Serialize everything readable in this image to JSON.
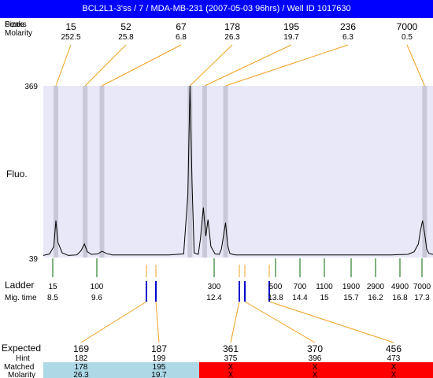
{
  "title": "BCL2L1-3'ss / 7 / MDA-MB-231 (2007-05-03 96hrs) / Well ID 1017630",
  "top_rows": {
    "row1_label": "Peaks",
    "row1_label_overlay": "Sizes",
    "row2_label": "Molarity",
    "peaks": [
      {
        "size": "15",
        "molarity": "252.5"
      },
      {
        "size": "52",
        "molarity": "25.8"
      },
      {
        "size": "67",
        "molarity": "6.8"
      },
      {
        "size": "178",
        "molarity": "26.3"
      },
      {
        "size": "195",
        "molarity": "19.7"
      },
      {
        "size": "236",
        "molarity": "6.3"
      },
      {
        "size": "7000",
        "molarity": "0.5"
      }
    ]
  },
  "axis": {
    "y_max_label": "369",
    "y_min_label": "39",
    "y_title": "Fluo."
  },
  "ladder": {
    "label": "Ladder",
    "mig_label": "Mig. time",
    "items": [
      {
        "size": "15",
        "time": "8.5"
      },
      {
        "size": "100",
        "time": "9.6"
      },
      {
        "size": "300",
        "time": "12.4"
      },
      {
        "size": "500",
        "time": "13.8"
      },
      {
        "size": "700",
        "time": "14.4"
      },
      {
        "size": "1100",
        "time": "15"
      },
      {
        "size": "1900",
        "time": "15.7"
      },
      {
        "size": "2900",
        "time": "16.2"
      },
      {
        "size": "4900",
        "time": "16.8"
      },
      {
        "size": "7000",
        "time": "17.3"
      }
    ]
  },
  "expected": {
    "label": "Expected",
    "hint_label": "Hint",
    "matched_label": "Matched",
    "molarity_label": "Molarity",
    "items": [
      {
        "expected": "169",
        "hint": "182",
        "matched": "178",
        "molarity": "26.3",
        "found": true
      },
      {
        "expected": "187",
        "hint": "199",
        "matched": "195",
        "molarity": "19.7",
        "found": true
      },
      {
        "expected": "361",
        "hint": "375",
        "matched": "X",
        "molarity": "X",
        "found": false
      },
      {
        "expected": "370",
        "hint": "396",
        "matched": "X",
        "molarity": "X",
        "found": false
      },
      {
        "expected": "456",
        "hint": "473",
        "matched": "X",
        "molarity": "X",
        "found": false
      }
    ]
  },
  "colors": {
    "title_bg": "#0000ff",
    "plot_bg": "#e8e8f8",
    "band": "#c8c8d8",
    "connector": "#f0a020",
    "ladder_tick": "#006400",
    "marker": "#0000cc",
    "expected_found": "#dd0000",
    "matched_bg": "#add8e6",
    "unmatched_bg": "#ff0000"
  },
  "chart_data": {
    "type": "line",
    "title": "BCL2L1-3'ss / 7 / MDA-MB-231 (2007-05-03 96hrs) / Well ID 1017630",
    "xlabel": "",
    "ylabel": "Fluo.",
    "ylim": [
      39,
      369
    ],
    "x_axis": "migration time",
    "xlim": [
      8.2,
      17.5
    ],
    "series": [
      {
        "x": [
          8.2,
          8.35,
          8.45,
          8.5,
          8.55,
          8.65,
          8.8,
          9.0,
          9.1,
          9.18,
          9.25,
          9.35,
          9.5,
          9.6,
          9.7,
          9.85,
          10.5,
          11.2,
          11.55,
          11.65,
          11.7,
          11.75,
          11.8,
          11.9,
          11.95,
          12.02,
          12.08,
          12.13,
          12.2,
          12.3,
          12.4,
          12.45,
          12.55,
          12.6,
          12.65,
          12.72,
          12.8,
          12.9,
          13.5,
          14.5,
          15.5,
          16.5,
          16.9,
          17.05,
          17.15,
          17.2,
          17.25,
          17.3,
          17.35,
          17.4,
          17.5
        ],
        "y": [
          43,
          46,
          60,
          110,
          68,
          48,
          43,
          44,
          52,
          65,
          50,
          45,
          46,
          51,
          47,
          44,
          44,
          44,
          46,
          160,
          369,
          180,
          48,
          45,
          75,
          135,
          80,
          112,
          60,
          46,
          45,
          55,
          106,
          62,
          47,
          45,
          44,
          44,
          44,
          44,
          44,
          44,
          45,
          50,
          65,
          90,
          110,
          85,
          55,
          47,
          45
        ]
      }
    ],
    "peaks": [
      {
        "size": 15,
        "molarity": 252.5
      },
      {
        "size": 52,
        "molarity": 25.8
      },
      {
        "size": 67,
        "molarity": 6.8
      },
      {
        "size": 178,
        "molarity": 26.3
      },
      {
        "size": 195,
        "molarity": 19.7
      },
      {
        "size": 236,
        "molarity": 6.3
      },
      {
        "size": 7000,
        "molarity": 0.5
      }
    ],
    "ladder": [
      {
        "size": 15,
        "time": 8.5
      },
      {
        "size": 100,
        "time": 9.6
      },
      {
        "size": 300,
        "time": 12.4
      },
      {
        "size": 500,
        "time": 13.8
      },
      {
        "size": 700,
        "time": 14.4
      },
      {
        "size": 1100,
        "time": 15
      },
      {
        "size": 1900,
        "time": 15.7
      },
      {
        "size": 2900,
        "time": 16.2
      },
      {
        "size": 4900,
        "time": 16.8
      },
      {
        "size": 7000,
        "time": 17.3
      }
    ],
    "expected": [
      {
        "expected": 169,
        "hint": 182,
        "matched": 178,
        "molarity": 26.3
      },
      {
        "expected": 187,
        "hint": 199,
        "matched": 195,
        "molarity": 19.7
      },
      {
        "expected": 361,
        "hint": 375,
        "matched": null,
        "molarity": null
      },
      {
        "expected": 370,
        "hint": 396,
        "matched": null,
        "molarity": null
      },
      {
        "expected": 456,
        "hint": 473,
        "matched": null,
        "molarity": null
      }
    ]
  }
}
